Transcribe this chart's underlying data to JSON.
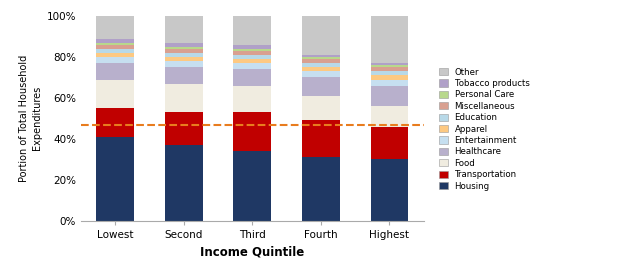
{
  "categories": [
    "Lowest",
    "Second",
    "Third",
    "Fourth",
    "Highest"
  ],
  "segments": [
    {
      "label": "Housing",
      "color": "#1f3864",
      "values": [
        0.41,
        0.37,
        0.34,
        0.31,
        0.3
      ]
    },
    {
      "label": "Transportation",
      "color": "#c00000",
      "values": [
        0.14,
        0.16,
        0.19,
        0.18,
        0.16
      ]
    },
    {
      "label": "Food",
      "color": "#f0ece0",
      "values": [
        0.14,
        0.14,
        0.13,
        0.12,
        0.1
      ]
    },
    {
      "label": "Healthcare",
      "color": "#b8b0cc",
      "values": [
        0.08,
        0.08,
        0.08,
        0.09,
        0.1
      ]
    },
    {
      "label": "Entertainment",
      "color": "#c6dff0",
      "values": [
        0.03,
        0.03,
        0.03,
        0.03,
        0.03
      ]
    },
    {
      "label": "Apparel",
      "color": "#fdc982",
      "values": [
        0.02,
        0.02,
        0.02,
        0.02,
        0.02
      ]
    },
    {
      "label": "Education",
      "color": "#b8d9e8",
      "values": [
        0.02,
        0.02,
        0.02,
        0.02,
        0.02
      ]
    },
    {
      "label": "Miscellaneous",
      "color": "#d9a090",
      "values": [
        0.02,
        0.02,
        0.02,
        0.02,
        0.02
      ]
    },
    {
      "label": "Personal Care",
      "color": "#b8d88b",
      "values": [
        0.01,
        0.01,
        0.01,
        0.01,
        0.01
      ]
    },
    {
      "label": "Tobacco products",
      "color": "#b0a0c8",
      "values": [
        0.02,
        0.02,
        0.02,
        0.01,
        0.01
      ]
    },
    {
      "label": "Other",
      "color": "#c8c8c8",
      "values": [
        0.11,
        0.13,
        0.14,
        0.19,
        0.23
      ]
    }
  ],
  "dashed_line_y": 0.467,
  "dashed_line_color": "#e87c1e",
  "xlabel": "Income Quintile",
  "ylabel": "Portion of Total Household\nExpenditures",
  "ylim": [
    0,
    1.0
  ],
  "yticks": [
    0,
    0.2,
    0.4,
    0.6,
    0.8,
    1.0
  ],
  "ytick_labels": [
    "0%",
    "20%",
    "40%",
    "60%",
    "80%",
    "100%"
  ],
  "bar_width": 0.55,
  "background_color": "#ffffff",
  "figsize": [
    6.23,
    2.69
  ],
  "dpi": 100
}
